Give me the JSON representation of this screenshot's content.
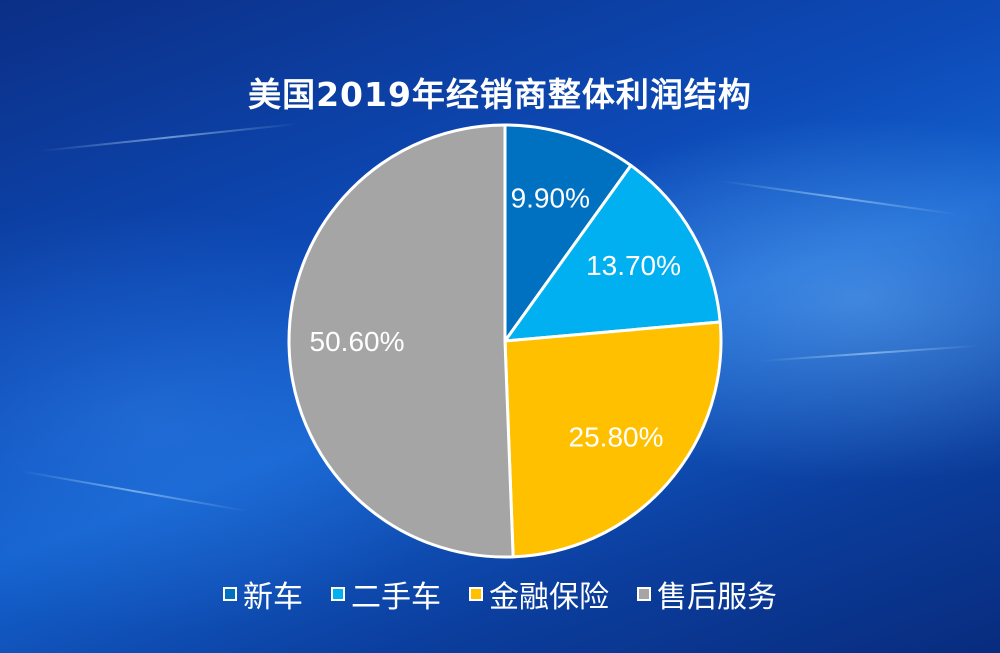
{
  "chart_data": {
    "type": "pie",
    "title": "美国2019年经销商整体利润结构",
    "categories": [
      "新车",
      "二手车",
      "金融保险",
      "售后服务"
    ],
    "values": [
      9.9,
      13.7,
      25.8,
      50.6
    ],
    "data_labels": [
      "9.90%",
      "13.70%",
      "25.80%",
      "50.60%"
    ],
    "colors": [
      "#0070c0",
      "#00b0f0",
      "#ffc000",
      "#a5a5a5"
    ],
    "legend_position": "bottom"
  }
}
